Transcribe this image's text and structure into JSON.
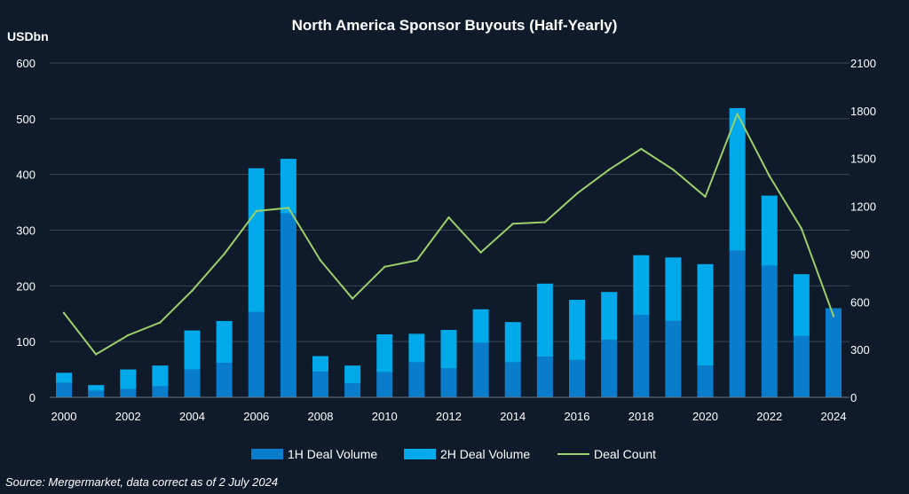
{
  "chart_data": {
    "type": "bar",
    "title": "North America Sponsor Buyouts (Half-Yearly)",
    "ylabel": "USDbn",
    "ylim": [
      0,
      600
    ],
    "y2lim": [
      0,
      2100
    ],
    "yticks": [
      "0",
      "100",
      "200",
      "300",
      "400",
      "500",
      "600"
    ],
    "y2ticks": [
      "0",
      "300",
      "600",
      "900",
      "1200",
      "1500",
      "1800",
      "2100"
    ],
    "categories": [
      "2000",
      "2001",
      "2002",
      "2003",
      "2004",
      "2005",
      "2006",
      "2007",
      "2008",
      "2009",
      "2010",
      "2011",
      "2012",
      "2013",
      "2014",
      "2015",
      "2016",
      "2017",
      "2018",
      "2019",
      "2020",
      "2021",
      "2022",
      "2023",
      "2024"
    ],
    "xtick_labels": [
      "2000",
      "2002",
      "2004",
      "2006",
      "2008",
      "2010",
      "2012",
      "2014",
      "2016",
      "2018",
      "2020",
      "2022",
      "2024"
    ],
    "stacked": true,
    "grid": true,
    "legend": "bottom",
    "series": [
      {
        "name": "1H Deal Volume",
        "color": "#0a7ccc",
        "axis": "left",
        "values": [
          26,
          12,
          15,
          20,
          50,
          62,
          153,
          330,
          46,
          25,
          45,
          63,
          52,
          98,
          63,
          73,
          67,
          103,
          148,
          137,
          57,
          263,
          236,
          110,
          160
        ]
      },
      {
        "name": "2H Deal Volume",
        "color": "#00aaea",
        "axis": "left",
        "values": [
          18,
          10,
          35,
          37,
          70,
          75,
          258,
          98,
          28,
          32,
          68,
          51,
          69,
          60,
          72,
          131,
          108,
          86,
          107,
          114,
          182,
          256,
          126,
          111,
          0
        ]
      },
      {
        "name": "Deal Count",
        "color": "#9bcf6a",
        "axis": "right",
        "type": "line",
        "values": [
          530,
          270,
          390,
          470,
          670,
          900,
          1170,
          1190,
          860,
          620,
          820,
          860,
          1130,
          910,
          1090,
          1100,
          1280,
          1430,
          1560,
          1430,
          1260,
          1780,
          1390,
          1060,
          510
        ]
      }
    ],
    "source": "Source: Mergermarket, data correct as of 2 July 2024"
  }
}
